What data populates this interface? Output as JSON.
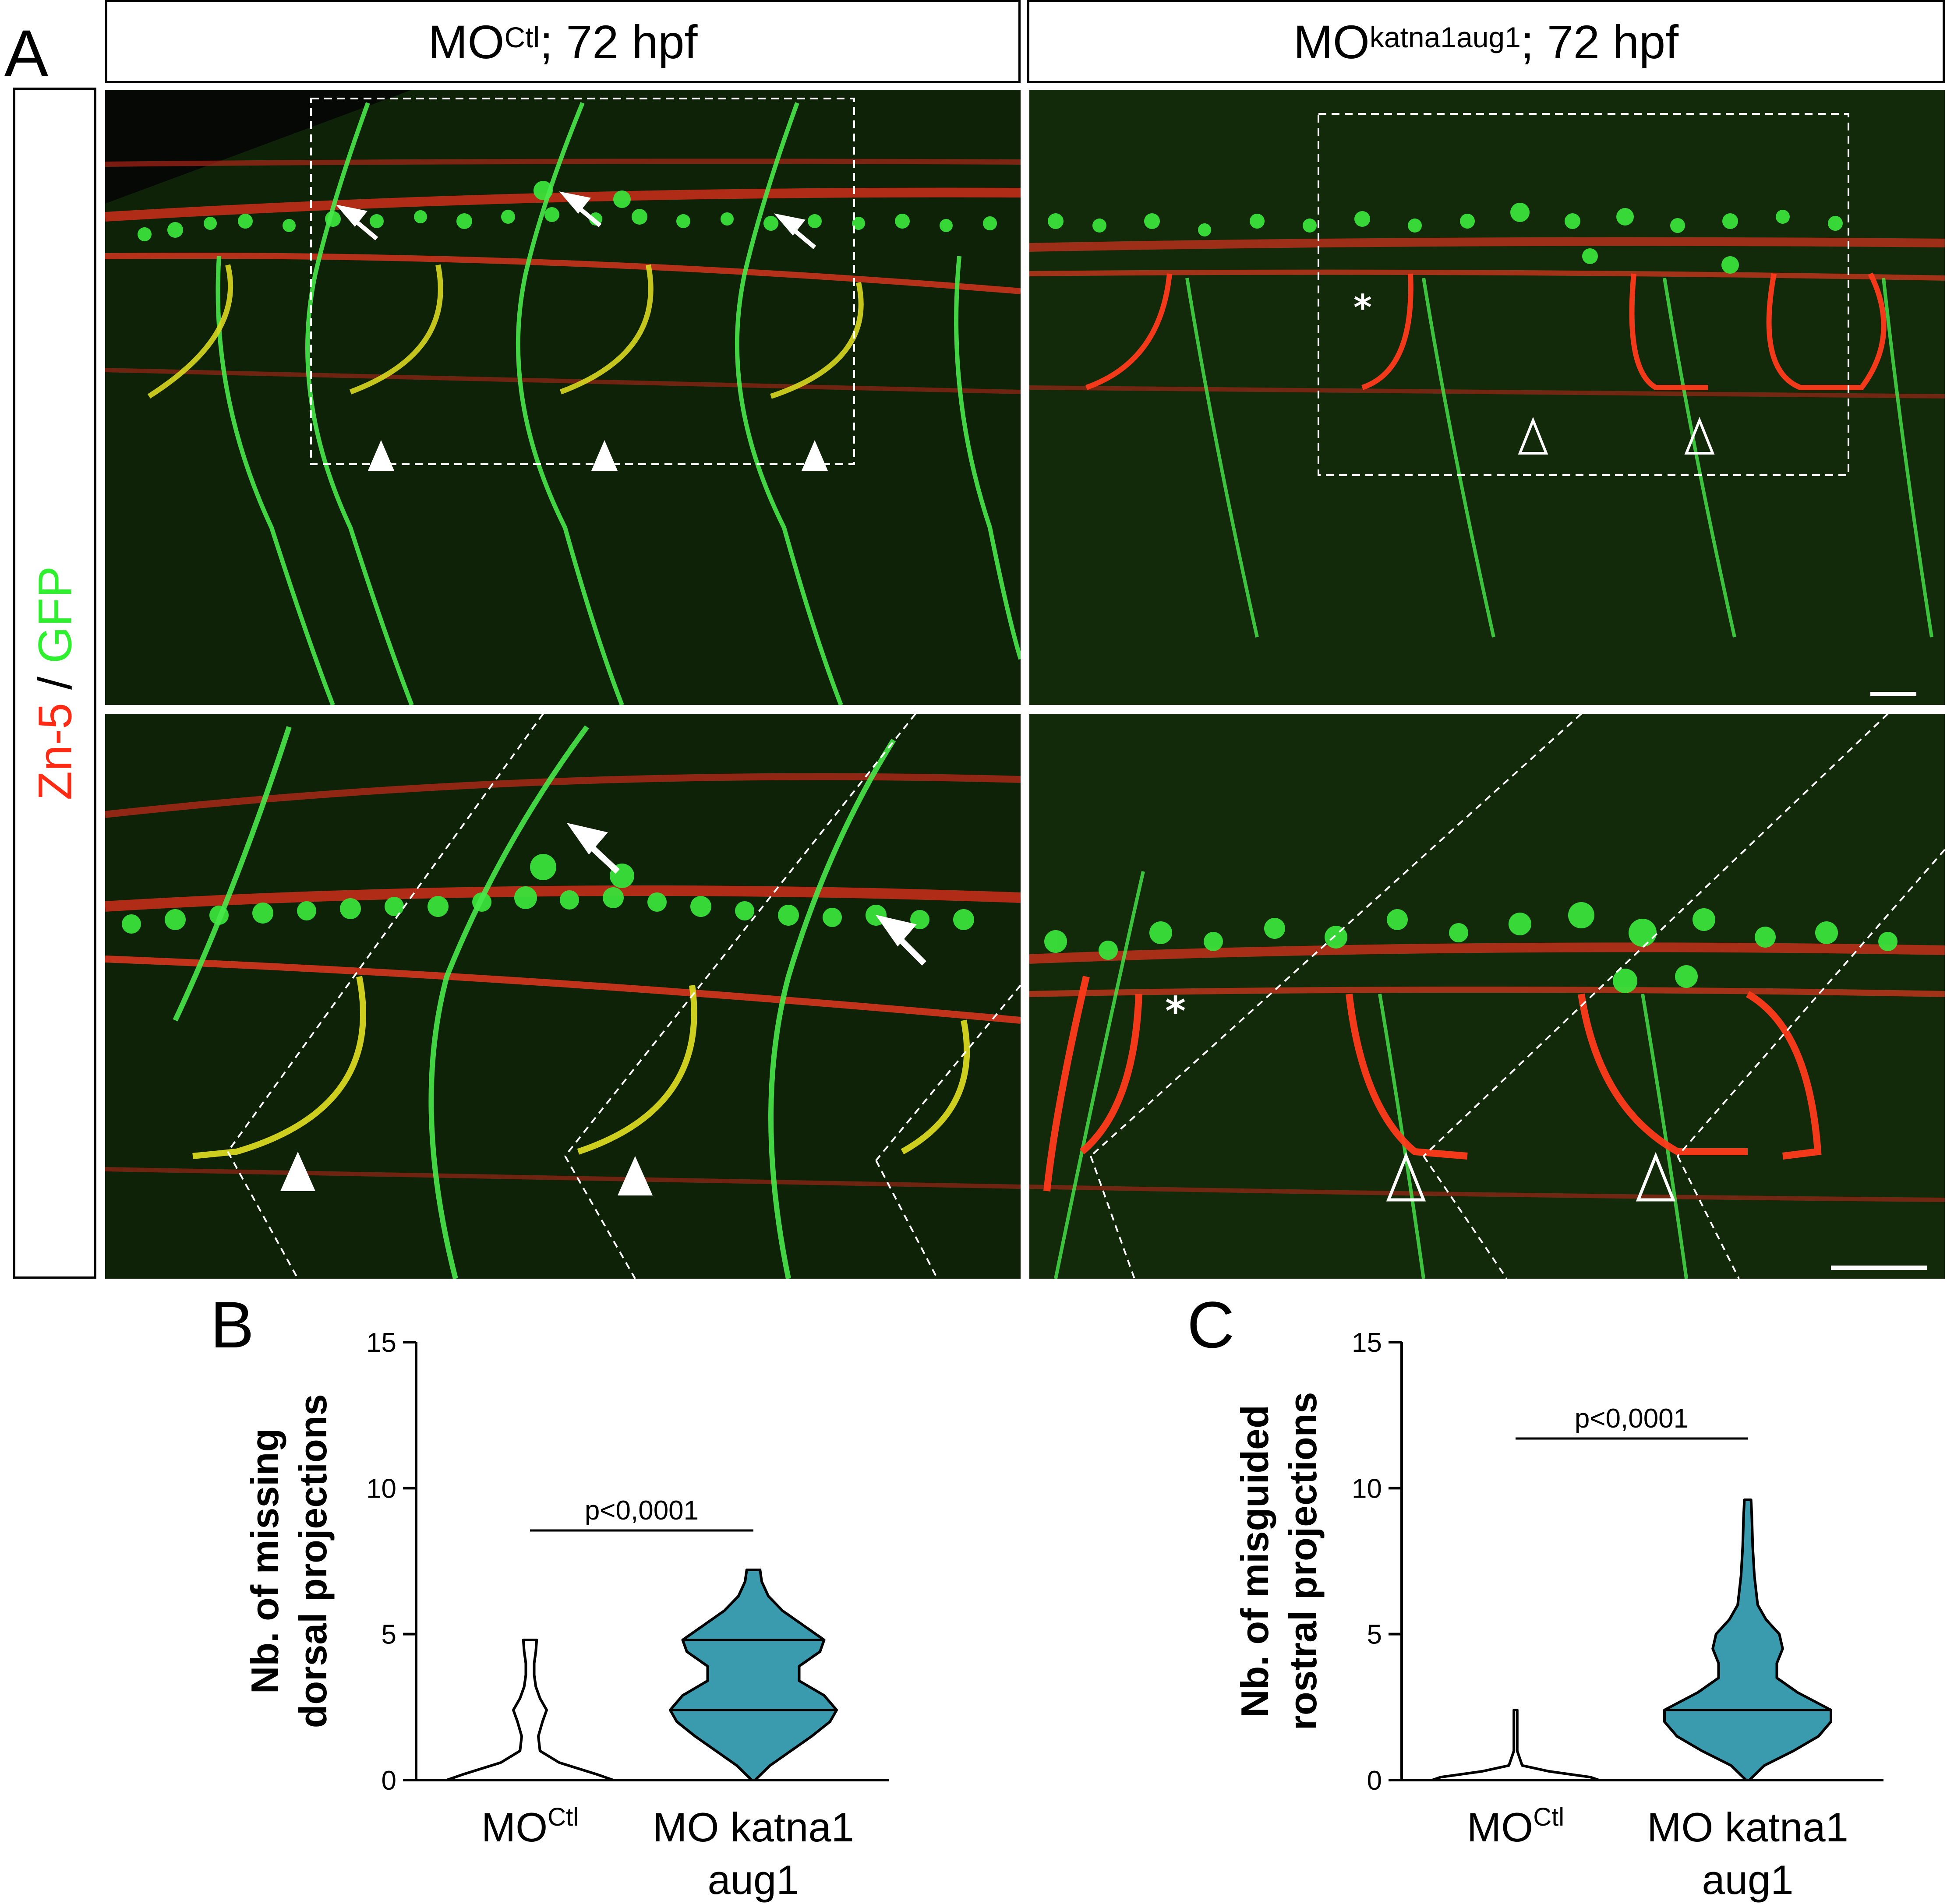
{
  "figure": {
    "panel_a_letter": "A",
    "panel_b_letter": "B",
    "panel_c_letter": "C",
    "header_left_main": "MO",
    "header_left_sup": "Ctl",
    "header_left_rest": "; 72 hpf",
    "header_right_main": "MO ",
    "header_right_sup": "katna1aug1",
    "header_right_rest": "; 72 hpf",
    "stain_red": "Zn-5",
    "stain_sep": " / ",
    "stain_green": "GFP",
    "asterisk": "*",
    "colors": {
      "red_stain": "#ff2a14",
      "green_stain": "#2ef02e",
      "violin_fill": "#3a9aae",
      "micro_bg": "#0d1a06"
    },
    "icons": [
      "filled-arrowhead-icon",
      "open-arrowhead-icon",
      "arrow-icon",
      "asterisk-marker"
    ]
  },
  "chart_data": [
    {
      "type": "violin",
      "panel": "B",
      "ylabel_line1": "Nb. of missing",
      "ylabel_line2": "dorsal projections",
      "ylim": [
        0,
        15
      ],
      "yticks": [
        "0",
        "5",
        "10",
        "15"
      ],
      "categories": [
        {
          "line1": "MO",
          "sup": "Ctl",
          "line2": ""
        },
        {
          "line1": "MO katna1",
          "sup": "",
          "line2": "aug1"
        }
      ],
      "series": [
        {
          "category_index": 0,
          "fill": "none",
          "max": 4.8,
          "median": 0,
          "quartiles": [
            0,
            0
          ],
          "density_y": [
            0,
            0.2,
            0.6,
            1.0,
            1.5,
            2.0,
            2.4,
            2.8,
            3.2,
            3.6,
            4.0,
            4.4,
            4.8
          ],
          "density_w": [
            1.0,
            0.8,
            0.35,
            0.12,
            0.1,
            0.15,
            0.2,
            0.12,
            0.07,
            0.05,
            0.05,
            0.07,
            0.08
          ]
        },
        {
          "category_index": 1,
          "fill": "#3a9aae",
          "max": 7.2,
          "median": 2.4,
          "quartiles": [
            2.4,
            4.8
          ],
          "density_y": [
            0,
            0.5,
            1.0,
            1.5,
            2.0,
            2.4,
            2.9,
            3.4,
            3.9,
            4.4,
            4.8,
            5.3,
            5.8,
            6.3,
            6.8,
            7.2
          ],
          "density_w": [
            0.02,
            0.2,
            0.45,
            0.7,
            0.92,
            1.0,
            0.85,
            0.55,
            0.55,
            0.8,
            0.85,
            0.6,
            0.35,
            0.18,
            0.1,
            0.08
          ]
        }
      ],
      "p_value": "p<0,0001"
    },
    {
      "type": "violin",
      "panel": "C",
      "ylabel_line1": "Nb. of misguided",
      "ylabel_line2": "rostral projections",
      "ylim": [
        0,
        15
      ],
      "yticks": [
        "0",
        "5",
        "10",
        "15"
      ],
      "categories": [
        {
          "line1": "MO",
          "sup": "Ctl",
          "line2": ""
        },
        {
          "line1": "MO katna1",
          "sup": "",
          "line2": "aug1"
        }
      ],
      "series": [
        {
          "category_index": 0,
          "fill": "none",
          "max": 2.4,
          "median": 0,
          "quartiles": [
            0,
            0
          ],
          "density_y": [
            0,
            0.1,
            0.3,
            0.5,
            1.0,
            1.5,
            2.0,
            2.4
          ],
          "density_w": [
            1.0,
            0.9,
            0.4,
            0.08,
            0.02,
            0.02,
            0.02,
            0.02
          ]
        },
        {
          "category_index": 1,
          "fill": "#3a9aae",
          "max": 9.6,
          "median": 2.4,
          "quartiles": [
            2.4,
            2.4
          ],
          "density_y": [
            0,
            0.5,
            1.0,
            1.5,
            2.0,
            2.4,
            3.0,
            3.5,
            4.0,
            4.5,
            5.0,
            5.5,
            6.0,
            7.0,
            8.0,
            9.0,
            9.6
          ],
          "density_w": [
            0.02,
            0.2,
            0.55,
            0.85,
            1.0,
            1.0,
            0.6,
            0.35,
            0.35,
            0.42,
            0.38,
            0.22,
            0.12,
            0.08,
            0.06,
            0.05,
            0.04
          ]
        }
      ],
      "p_value": "p<0,0001"
    }
  ]
}
